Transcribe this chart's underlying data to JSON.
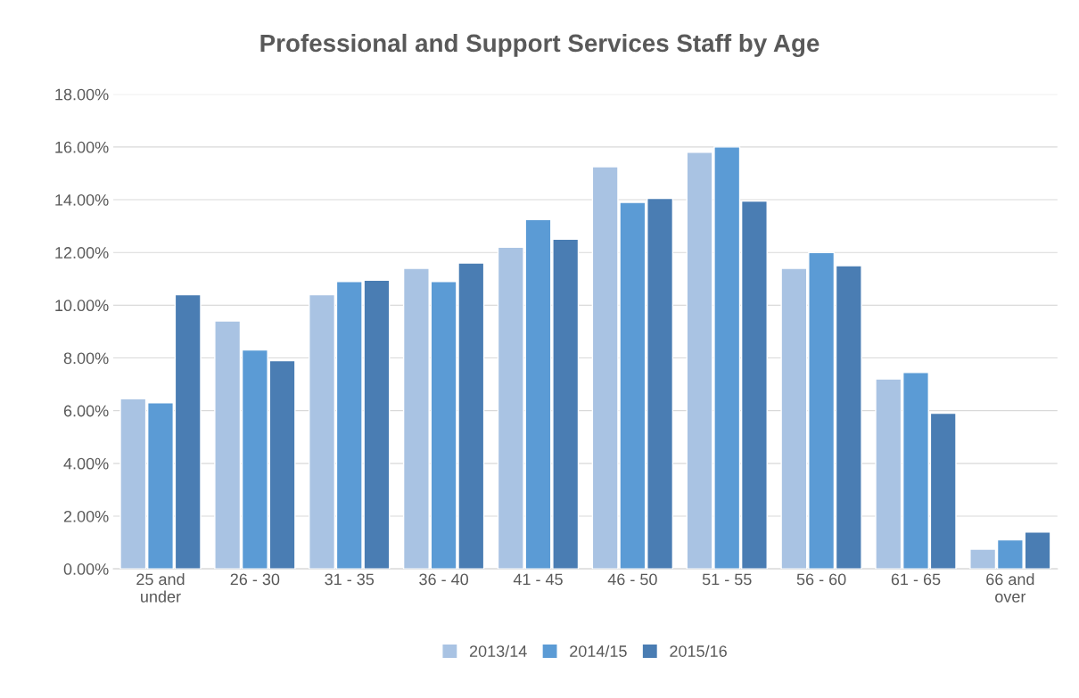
{
  "chart_data": {
    "type": "bar",
    "title": "Professional and Support Services Staff by Age",
    "categories": [
      "25 and\nunder",
      "26 - 30",
      "31 - 35",
      "36 - 40",
      "41 - 45",
      "46 - 50",
      "51 - 55",
      "56 - 60",
      "61 - 65",
      "66 and\nover"
    ],
    "series": [
      {
        "name": "2013/14",
        "color": "#a9c3e3",
        "values": [
          6.45,
          9.4,
          10.4,
          11.4,
          12.2,
          15.25,
          15.8,
          11.4,
          7.2,
          0.75
        ]
      },
      {
        "name": "2014/15",
        "color": "#5b9bd5",
        "values": [
          6.3,
          8.3,
          10.9,
          10.9,
          13.25,
          13.9,
          16.0,
          12.0,
          7.45,
          1.1
        ]
      },
      {
        "name": "2015/16",
        "color": "#4a7db3",
        "values": [
          10.4,
          7.9,
          10.95,
          11.6,
          12.5,
          14.05,
          13.95,
          11.5,
          5.9,
          1.4
        ]
      }
    ],
    "ylim": [
      0,
      18
    ],
    "yticks": [
      {
        "value": 0,
        "label": "0.00%"
      },
      {
        "value": 2,
        "label": "2.00%"
      },
      {
        "value": 4,
        "label": "4.00%"
      },
      {
        "value": 6,
        "label": "6.00%"
      },
      {
        "value": 8,
        "label": "8.00%"
      },
      {
        "value": 10,
        "label": "10.00%"
      },
      {
        "value": 12,
        "label": "12.00%"
      },
      {
        "value": 14,
        "label": "14.00%"
      },
      {
        "value": 16,
        "label": "16.00%"
      },
      {
        "value": 18,
        "label": "18.00%"
      }
    ],
    "grid": "y",
    "legend": "bottom"
  }
}
